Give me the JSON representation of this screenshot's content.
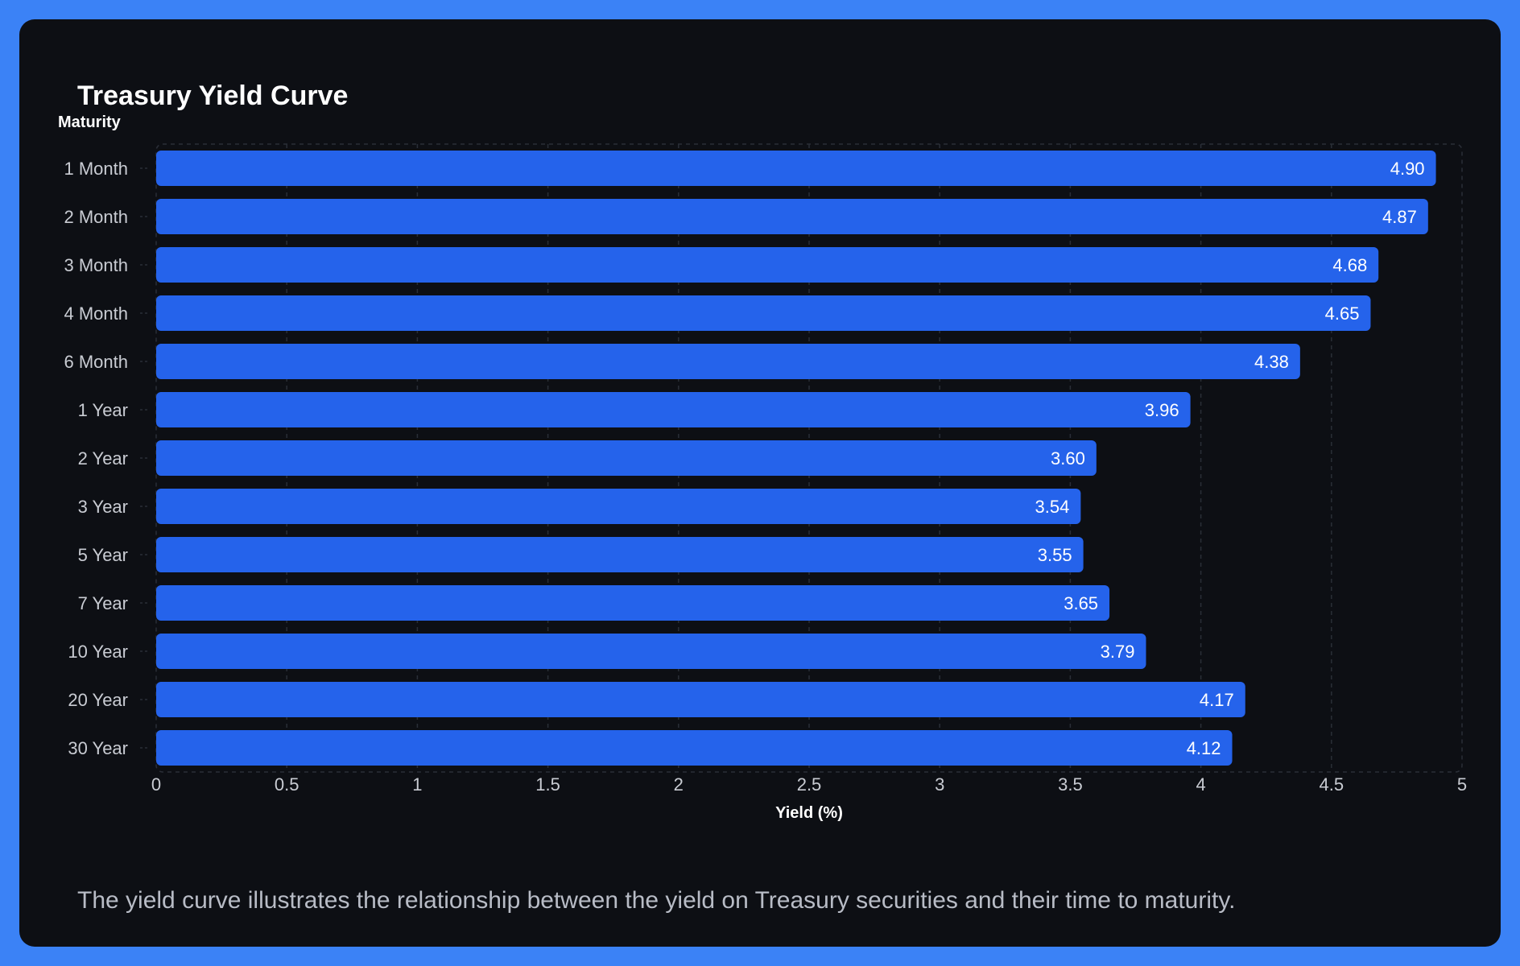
{
  "title": "Treasury Yield Curve",
  "caption": "The yield curve illustrates the relationship between the yield on Treasury securities and their time to maturity.",
  "colors": {
    "frame": "#3b82f6",
    "card": "#0d0f14",
    "bar": "#2563eb",
    "grid": "#2a2e37",
    "text": "#c9ccd3"
  },
  "chart_data": {
    "type": "bar",
    "orientation": "horizontal",
    "categories": [
      "1 Month",
      "2 Month",
      "3 Month",
      "4 Month",
      "6 Month",
      "1 Year",
      "2 Year",
      "3 Year",
      "5 Year",
      "7 Year",
      "10 Year",
      "20 Year",
      "30 Year"
    ],
    "values": [
      4.9,
      4.87,
      4.68,
      4.65,
      4.38,
      3.96,
      3.6,
      3.54,
      3.55,
      3.65,
      3.79,
      4.17,
      4.12
    ],
    "value_labels": [
      "4.90",
      "4.87",
      "4.68",
      "4.65",
      "4.38",
      "3.96",
      "3.60",
      "3.54",
      "3.55",
      "3.65",
      "3.79",
      "4.17",
      "4.12"
    ],
    "xlabel": "Yield (%)",
    "ylabel": "Maturity",
    "xlim": [
      0,
      5
    ],
    "xticks": [
      0,
      0.5,
      1,
      1.5,
      2,
      2.5,
      3,
      3.5,
      4,
      4.5,
      5
    ],
    "xtick_labels": [
      "0",
      "0.5",
      "1",
      "1.5",
      "2",
      "2.5",
      "3",
      "3.5",
      "4",
      "4.5",
      "5"
    ],
    "grid": true
  }
}
